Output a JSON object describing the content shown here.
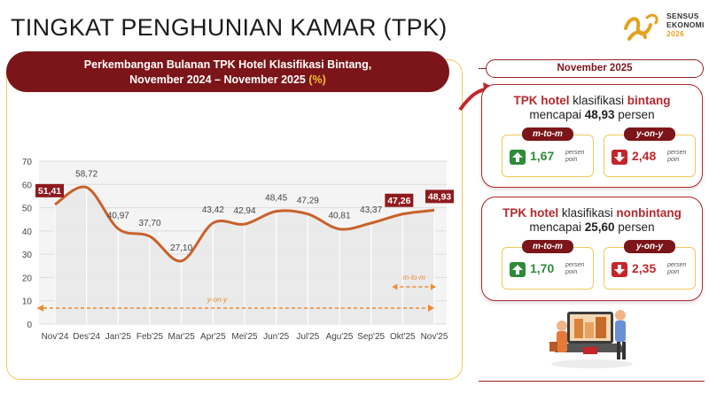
{
  "page_title": "TINGKAT PENGHUNIAN KAMAR (TPK)",
  "logo": {
    "line1": "SENSUS",
    "line2": "EKONOMI",
    "year": "2026",
    "icon": "sensus-ekonomi-logo-icon"
  },
  "chart_header": {
    "line1": "Perkembangan Bulanan TPK Hotel Klasifikasi Bintang,",
    "line2": "November 2024 – November 2025",
    "unit": "(%)"
  },
  "chart_data": {
    "type": "area",
    "title": "Perkembangan Bulanan TPK Hotel Klasifikasi Bintang, November 2024 – November 2025 (%)",
    "categories": [
      "Nov'24",
      "Des'24",
      "Jan'25",
      "Feb'25",
      "Mar'25",
      "Apr'25",
      "Mei'25",
      "Jun'25",
      "Jul'25",
      "Agu'25",
      "Sep'25",
      "Okt'25",
      "Nov'25"
    ],
    "series": [
      {
        "values": [
          51.41,
          58.72,
          40.97,
          37.7,
          27.1,
          43.42,
          42.94,
          48.45,
          47.29,
          40.81,
          43.37,
          47.26,
          48.93
        ]
      }
    ],
    "data_labels": [
      "51,41",
      "58,72",
      "40,97",
      "37,70",
      "27,10",
      "43,42",
      "42,94",
      "48,45",
      "47,29",
      "40,81",
      "43,37",
      "47,26",
      "48,93"
    ],
    "highlighted_labels": [
      0,
      11,
      12
    ],
    "ylim": [
      0,
      70
    ],
    "yticks": [
      "0",
      "10",
      "20",
      "30",
      "40",
      "50",
      "60",
      "70"
    ],
    "grid": true,
    "annotations": [
      {
        "text": "m-to-m",
        "from": 11,
        "to": 12
      },
      {
        "text": "y-on-y",
        "from": 0,
        "to": 12
      }
    ],
    "colors": {
      "line": "#c8612a",
      "area": "#e9e9e9",
      "label_box": "#8e1a1e",
      "arrow": "#ee8a2f"
    }
  },
  "period": "November 2025",
  "cards": [
    {
      "title_red": "TPK hotel",
      "title_mid": "klasifikasi",
      "title_red2": "bintang",
      "line2_prefix": "mencapai",
      "line2_value": "48,93",
      "line2_suffix": "persen",
      "mtom": {
        "label": "m-to-m",
        "value": "1,67",
        "unit1": "persen",
        "unit2": "poin",
        "direction": "up",
        "icon": "arrow-up-icon"
      },
      "yony": {
        "label": "y-on-y",
        "value": "2,48",
        "unit1": "persen",
        "unit2": "poin",
        "direction": "down",
        "icon": "arrow-down-icon"
      }
    },
    {
      "title_red": "TPK hotel",
      "title_mid": "klasifikasi",
      "title_red2": "nonbintang",
      "line2_prefix": "mencapai",
      "line2_value": "25,60",
      "line2_suffix": "persen",
      "mtom": {
        "label": "m-to-m",
        "value": "1,70",
        "unit1": "persen",
        "unit2": "poin",
        "direction": "up",
        "icon": "arrow-up-icon"
      },
      "yony": {
        "label": "y-on-y",
        "value": "2,35",
        "unit1": "persen",
        "unit2": "poin",
        "direction": "down",
        "icon": "arrow-down-icon"
      }
    }
  ],
  "illustration": "hotel-booking-illustration-icon",
  "colors": {
    "maroon": "#7b1519",
    "accent_yellow": "#f5c02c",
    "green": "#2e8b3a",
    "red": "#c4262b"
  }
}
